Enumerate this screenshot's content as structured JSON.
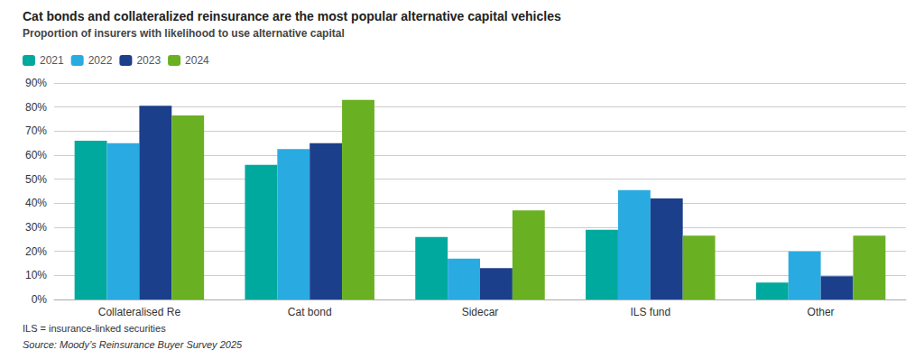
{
  "chart_data": {
    "type": "bar",
    "title": "Cat bonds and collateralized reinsurance are the most popular alternative capital vehicles",
    "subtitle": "Proportion of insurers with likelihood to use alternative capital",
    "annotations": [
      "ILS = insurance-linked securities",
      "Source: Moody’s Reinsurance Buyer Survey 2025"
    ],
    "categories": [
      "Collateralised Re",
      "Cat bond",
      "Sidecar",
      "ILS fund",
      "Other"
    ],
    "series": [
      {
        "name": "2021",
        "color": "#00A99D",
        "values": [
          0.66,
          0.56,
          0.26,
          0.29,
          0.07
        ]
      },
      {
        "name": "2022",
        "color": "#29ABE2",
        "values": [
          0.65,
          0.625,
          0.17,
          0.455,
          0.2
        ]
      },
      {
        "name": "2023",
        "color": "#1B3F8B",
        "values": [
          0.805,
          0.65,
          0.13,
          0.42,
          0.097
        ]
      },
      {
        "name": "2024",
        "color": "#6AB023",
        "values": [
          0.765,
          0.83,
          0.37,
          0.265,
          0.265
        ]
      }
    ],
    "ylim": [
      0,
      0.9
    ],
    "yticks": [
      {
        "value": 0,
        "label": "0%"
      },
      {
        "value": 0.1,
        "label": "10%"
      },
      {
        "value": 0.2,
        "label": "20%"
      },
      {
        "value": 0.3,
        "label": "30%"
      },
      {
        "value": 0.4,
        "label": "40%"
      },
      {
        "value": 0.5,
        "label": "50%"
      },
      {
        "value": 0.6,
        "label": "60%"
      },
      {
        "value": 0.7,
        "label": "70%"
      },
      {
        "value": 0.8,
        "label": "80%"
      },
      {
        "value": 0.9,
        "label": "90%"
      }
    ],
    "grid": true,
    "legend": "upper left"
  }
}
